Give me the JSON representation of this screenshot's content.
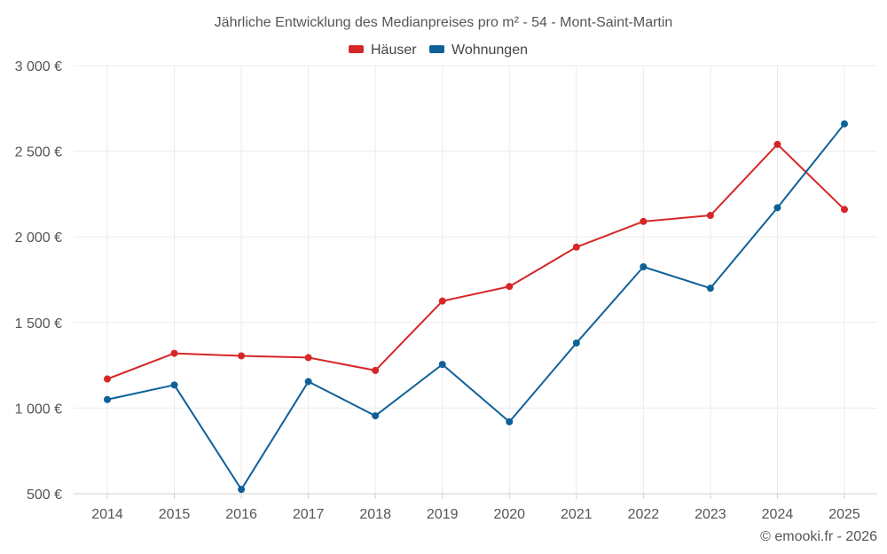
{
  "chart_data": {
    "type": "line",
    "title": "Jährliche Entwicklung des Medianpreises pro m² - 54 - Mont-Saint-Martin",
    "categories": [
      "2014",
      "2015",
      "2016",
      "2017",
      "2018",
      "2019",
      "2020",
      "2021",
      "2022",
      "2023",
      "2024",
      "2025"
    ],
    "series": [
      {
        "name": "Häuser",
        "color": "#d62728",
        "values": [
          1170,
          1320,
          1305,
          1295,
          1220,
          1625,
          1710,
          1940,
          2090,
          2125,
          2540,
          2160
        ]
      },
      {
        "name": "Wohnungen",
        "color": "#0e6198",
        "values": [
          1050,
          1135,
          525,
          1155,
          955,
          1255,
          920,
          1380,
          1825,
          1700,
          2170,
          2660
        ]
      }
    ],
    "ylim": [
      500,
      3000
    ],
    "yticks": [
      500,
      1000,
      1500,
      2000,
      2500,
      3000
    ],
    "ytick_labels": [
      "500 €",
      "1 000 €",
      "1 500 €",
      "2 000 €",
      "2 500 €",
      "3 000 €"
    ],
    "xlabel": "",
    "ylabel": "",
    "grid": true,
    "legend_position": "top-center"
  },
  "credit": "© emooki.fr - 2026"
}
